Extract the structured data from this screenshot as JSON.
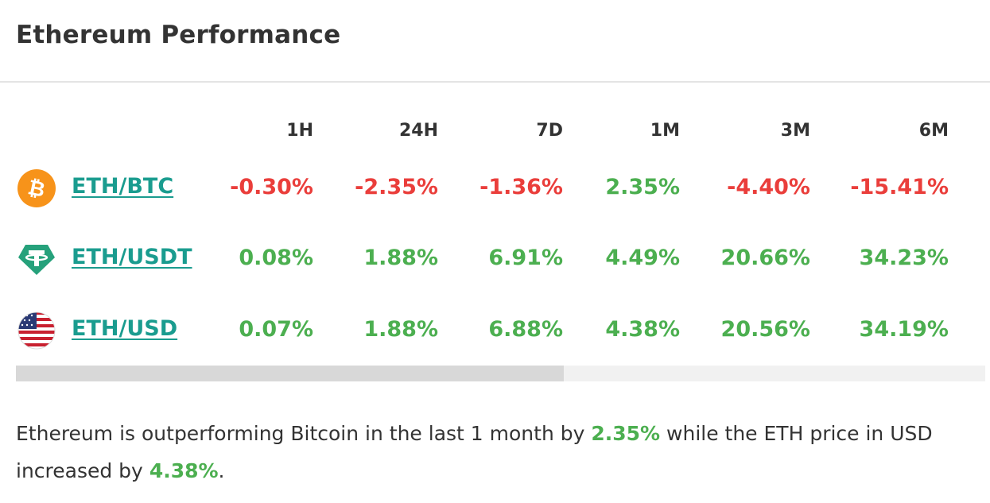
{
  "title": "Ethereum Performance",
  "columns": [
    "1H",
    "24H",
    "7D",
    "1M",
    "3M",
    "6M"
  ],
  "rows": [
    {
      "pair": "ETH/BTC",
      "icon": "bitcoin-icon",
      "values": [
        "-0.30%",
        "-2.35%",
        "-1.36%",
        "2.35%",
        "-4.40%",
        "-15.41%"
      ],
      "signs": [
        "neg",
        "neg",
        "neg",
        "pos",
        "neg",
        "neg"
      ]
    },
    {
      "pair": "ETH/USDT",
      "icon": "tether-icon",
      "values": [
        "0.08%",
        "1.88%",
        "6.91%",
        "4.49%",
        "20.66%",
        "34.23%"
      ],
      "signs": [
        "pos",
        "pos",
        "pos",
        "pos",
        "pos",
        "pos"
      ]
    },
    {
      "pair": "ETH/USD",
      "icon": "us-flag-icon",
      "values": [
        "0.07%",
        "1.88%",
        "6.88%",
        "4.38%",
        "20.56%",
        "34.19%"
      ],
      "signs": [
        "pos",
        "pos",
        "pos",
        "pos",
        "pos",
        "pos"
      ]
    }
  ],
  "scroll": {
    "position_fraction": 0.565
  },
  "summary": {
    "part1": "Ethereum is outperforming Bitcoin in the last 1 month by ",
    "highlight1": "2.35%",
    "part2": " while the ETH price in USD increased by ",
    "highlight2": "4.38%",
    "part3": "."
  },
  "colors": {
    "negative": "#ea3e3b",
    "positive": "#4caf50",
    "link": "#1a9c8f",
    "bitcoin": "#f7931a",
    "tether": "#26a17b"
  }
}
